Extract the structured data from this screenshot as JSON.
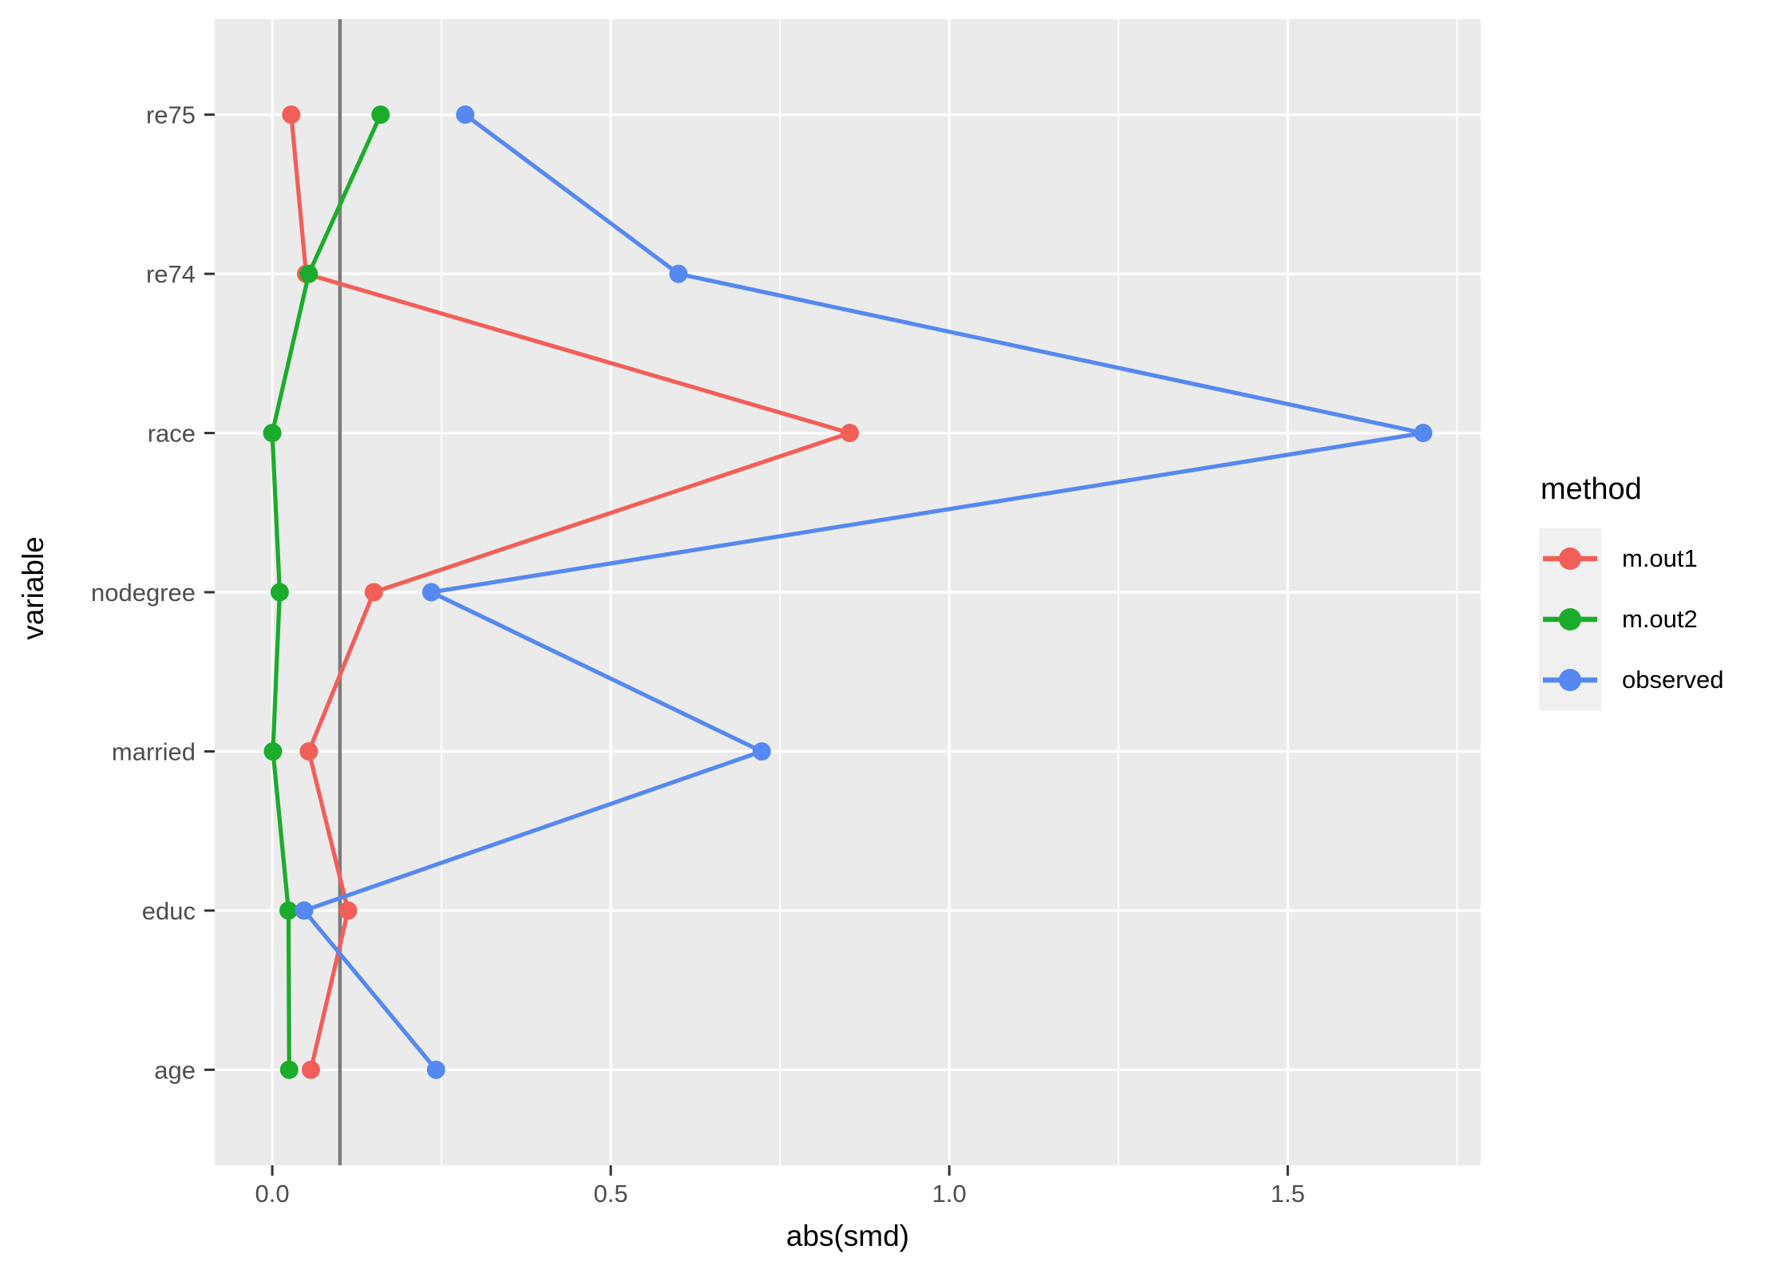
{
  "chart_data": {
    "type": "line",
    "orientation": "horizontal-dot-line (love plot)",
    "title": "",
    "xlabel": "abs(smd)",
    "ylabel": "variable",
    "categories_top_to_bottom": [
      "re75",
      "re74",
      "race",
      "nodegree",
      "married",
      "educ",
      "age"
    ],
    "x_tick_labels": [
      "0.0",
      "0.5",
      "1.0",
      "1.5"
    ],
    "x_tick_values": [
      0.0,
      0.5,
      1.0,
      1.5
    ],
    "x_minor_tick_values": [
      0.25,
      0.75,
      1.25,
      1.75
    ],
    "xlim": [
      -0.085,
      1.785
    ],
    "reference_line_x": 0.1,
    "grid": "white major gridlines on gray panel, minor vertical gridlines",
    "legend": {
      "title": "method",
      "position": "right"
    },
    "series": [
      {
        "name": "m.out1",
        "color": "#F25E58",
        "values": [
          0.028,
          0.05,
          0.853,
          0.15,
          0.054,
          0.112,
          0.057
        ]
      },
      {
        "name": "m.out2",
        "color": "#1BAC2C",
        "values": [
          0.16,
          0.054,
          0.0,
          0.011,
          0.001,
          0.024,
          0.025
        ]
      },
      {
        "name": "observed",
        "color": "#5588F0",
        "values": [
          0.285,
          0.6,
          1.7,
          0.235,
          0.723,
          0.047,
          0.242
        ]
      }
    ]
  },
  "style": {
    "panel_bg": "#EBEBEB",
    "grid_color": "#FFFFFF",
    "reference_line_color": "#7B7B7B",
    "legend_key_bg": "#F0F0F0",
    "tick_color": "#333333",
    "tick_label_color": "#4D4D4D",
    "title_color": "#000000"
  }
}
